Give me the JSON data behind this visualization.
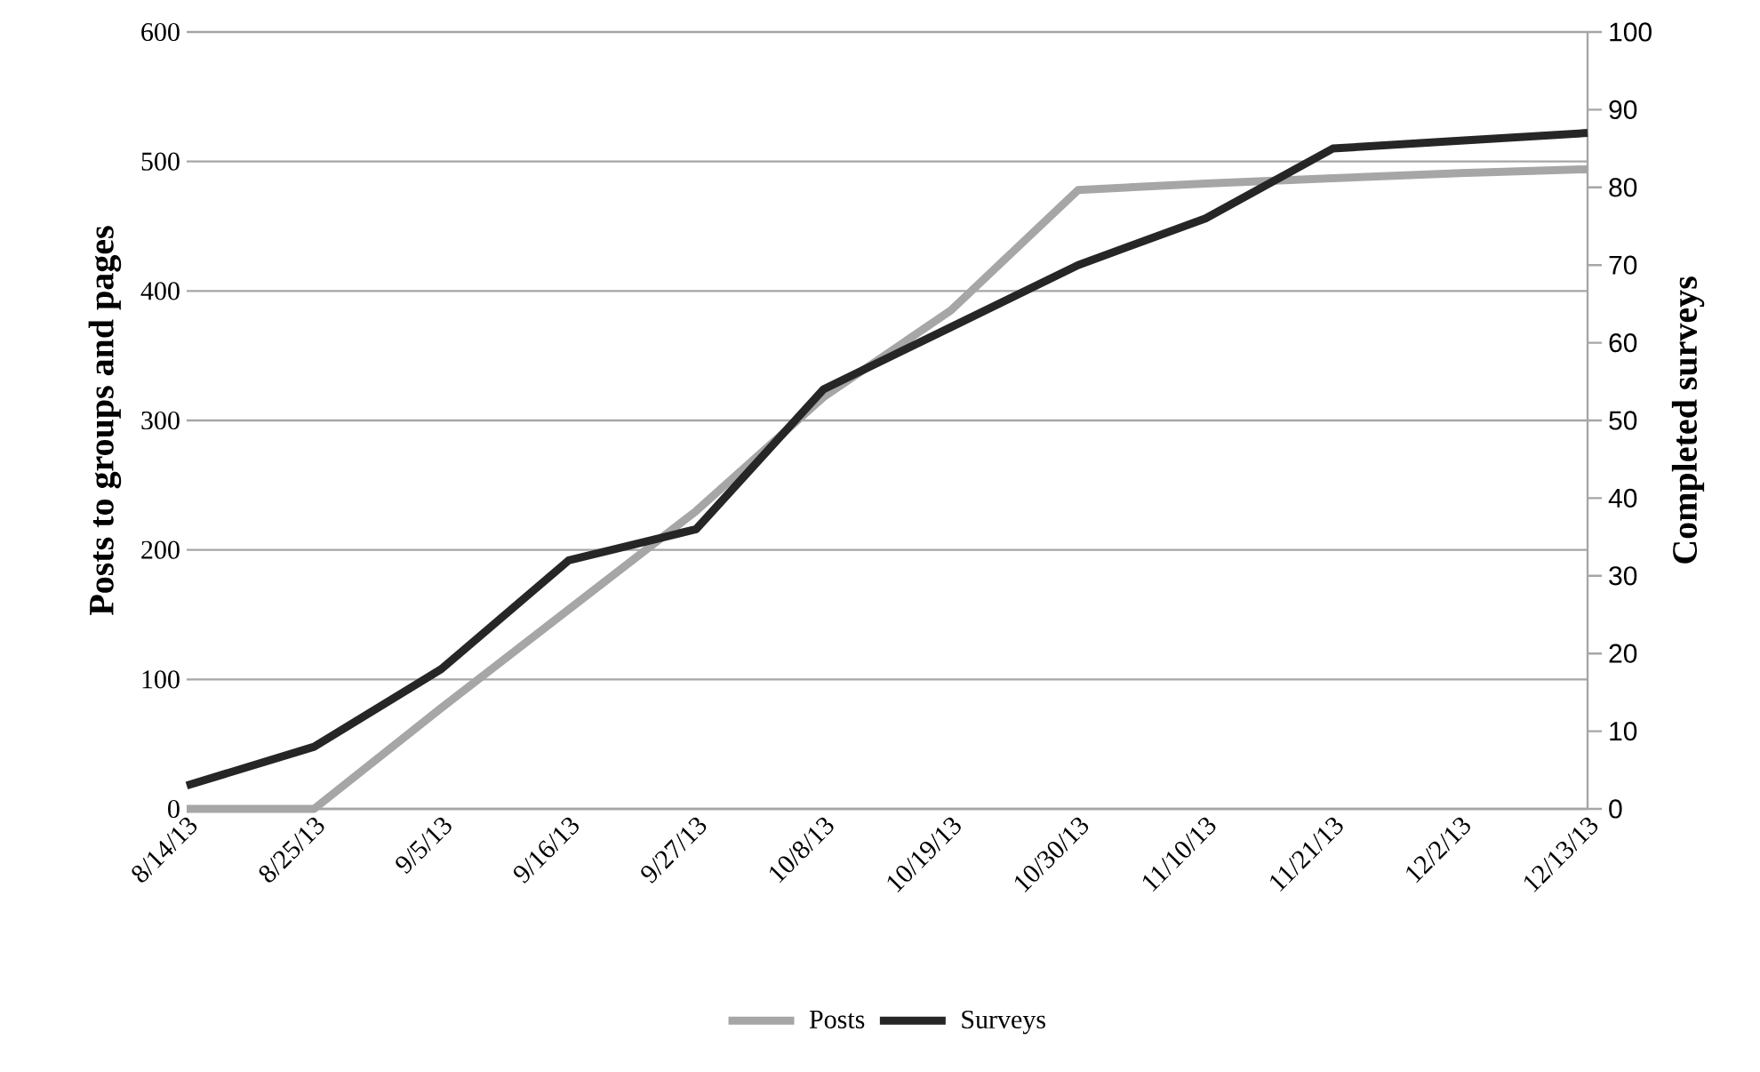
{
  "chart_data": {
    "type": "line",
    "categories": [
      "8/14/13",
      "8/25/13",
      "9/5/13",
      "9/16/13",
      "9/27/13",
      "10/8/13",
      "10/19/13",
      "10/30/13",
      "11/10/13",
      "11/21/13",
      "12/2/13",
      "12/13/13"
    ],
    "ylabel": "Posts to groups and pages",
    "y2label": "Completed surveys",
    "ylim": [
      0,
      600
    ],
    "yticks": [
      0,
      100,
      200,
      300,
      400,
      500,
      600
    ],
    "y2lim": [
      0,
      100
    ],
    "y2ticks": [
      0,
      10,
      20,
      30,
      40,
      50,
      60,
      70,
      80,
      90,
      100
    ],
    "grid": "y",
    "legend": "bottom",
    "series": [
      {
        "name": "Posts",
        "color": "#a6a6a6",
        "values": [
          0,
          0,
          78,
          154,
          230,
          318,
          385,
          478,
          483,
          487,
          491,
          494
        ]
      },
      {
        "name": "Surveys",
        "color": "#262626",
        "axis": "y2",
        "values": [
          3,
          8,
          18,
          32,
          36,
          54,
          62,
          70,
          76,
          85,
          86,
          87
        ]
      }
    ]
  }
}
